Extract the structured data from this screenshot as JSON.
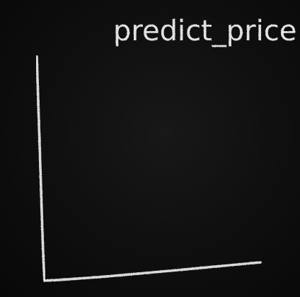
{
  "chart_data": {
    "type": "line",
    "title": "predict_price",
    "xlabel": "",
    "ylabel": "",
    "series": [],
    "grid": false
  },
  "colors": {
    "board": "#0b0b0b",
    "chalk": "#e6e6e6"
  }
}
